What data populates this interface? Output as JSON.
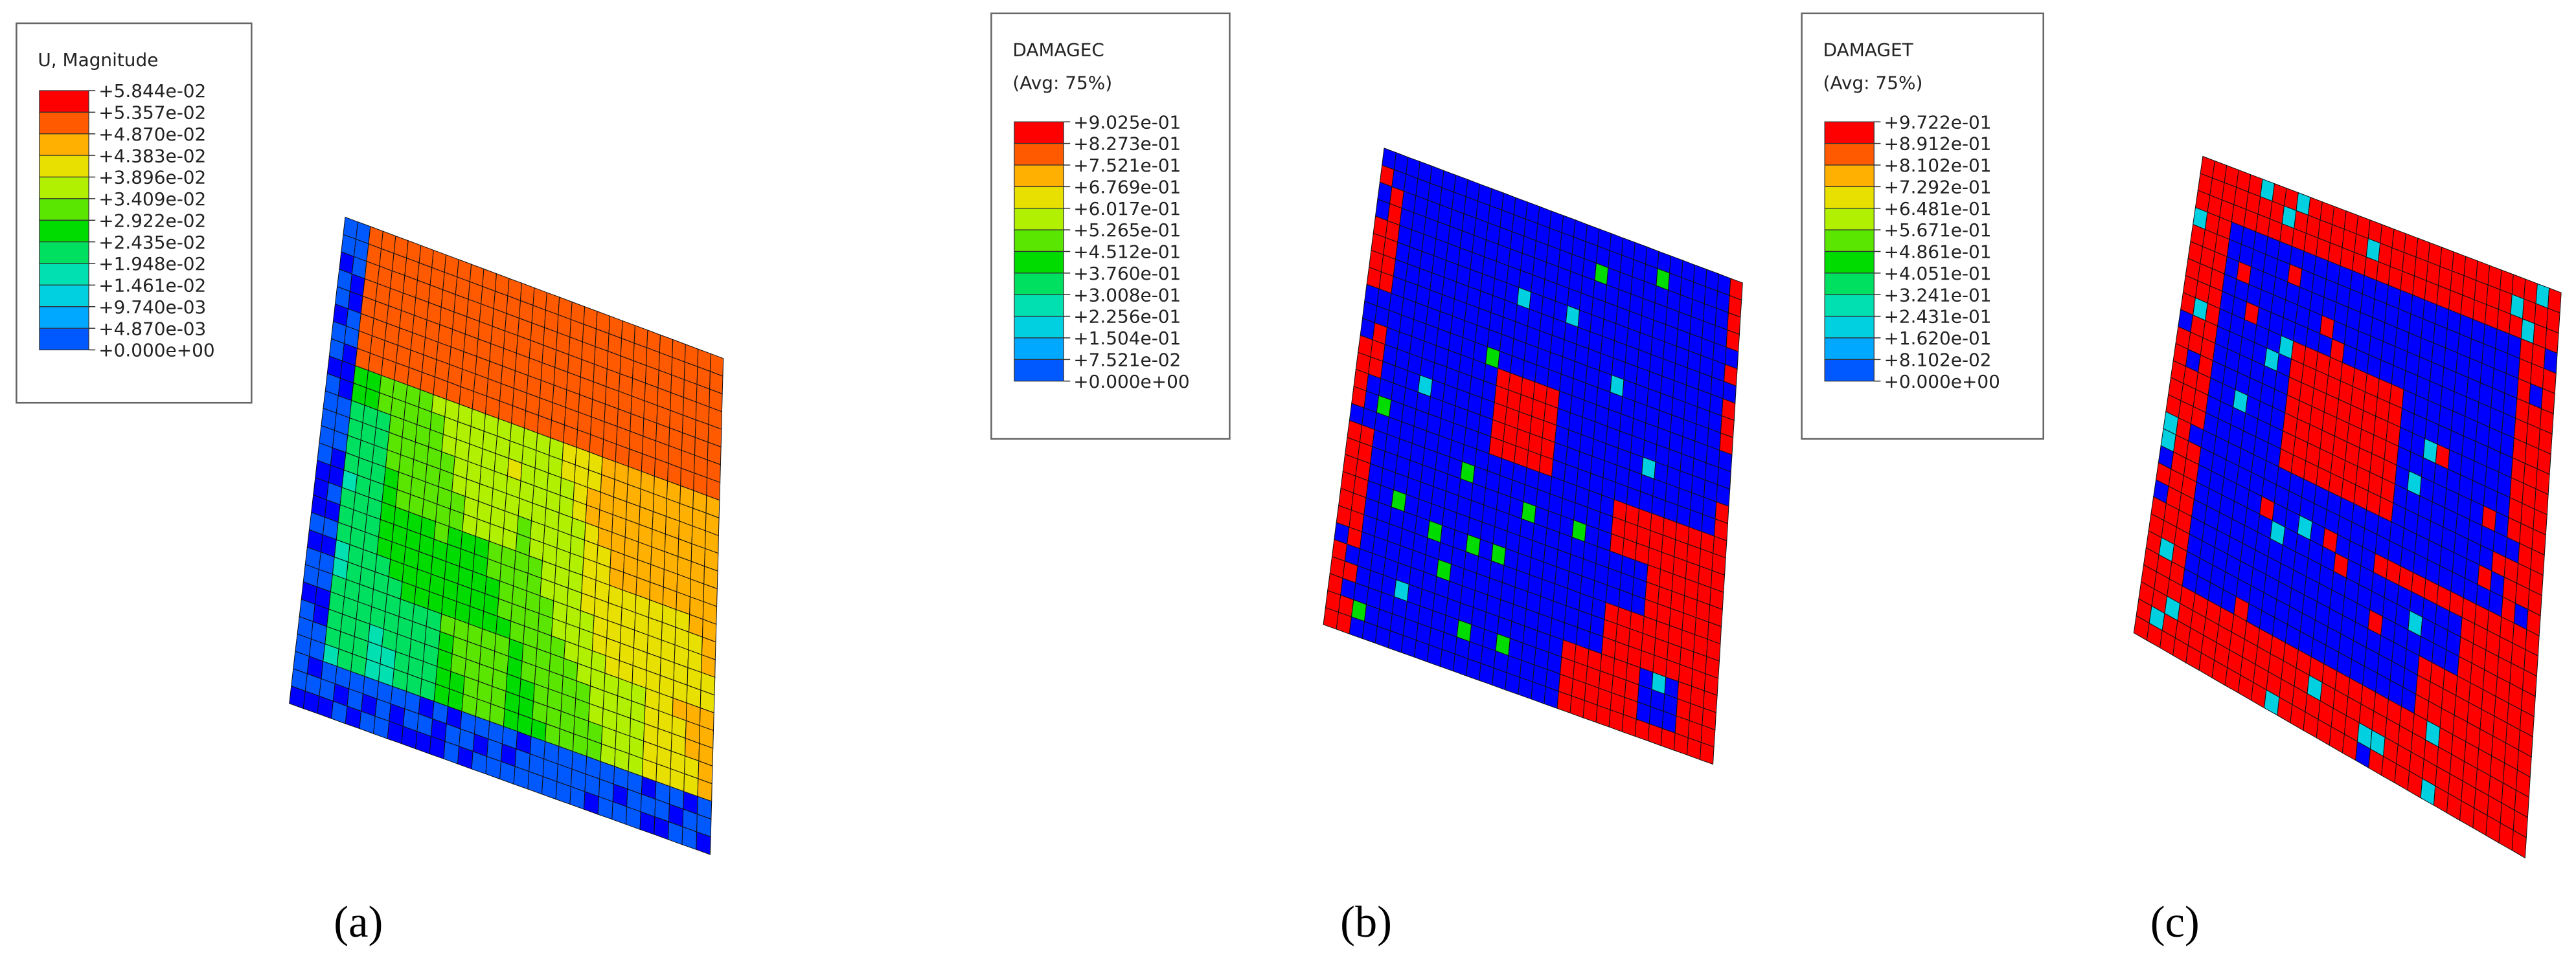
{
  "panels": [
    {
      "legend": {
        "title": "U, Magnitude",
        "labels": [
          "+5.844e-02",
          "+5.357e-02",
          "+4.870e-02",
          "+4.383e-02",
          "+3.896e-02",
          "+3.409e-02",
          "+2.922e-02",
          "+2.435e-02",
          "+1.948e-02",
          "+1.461e-02",
          "+9.740e-03",
          "+4.870e-03",
          "+0.000e+00"
        ]
      },
      "label": "(a)"
    },
    {
      "legend": {
        "title": "DAMAGEC",
        "subtitle": "(Avg: 75%)",
        "labels": [
          "+9.025e-01",
          "+8.273e-01",
          "+7.521e-01",
          "+6.769e-01",
          "+6.017e-01",
          "+5.265e-01",
          "+4.512e-01",
          "+3.760e-01",
          "+3.008e-01",
          "+2.256e-01",
          "+1.504e-01",
          "+7.521e-02",
          "+0.000e+00"
        ]
      },
      "label": "(b)"
    },
    {
      "legend": {
        "title": "DAMAGET",
        "subtitle": "(Avg: 75%)",
        "labels": [
          "+9.722e-01",
          "+8.912e-01",
          "+8.102e-01",
          "+7.292e-01",
          "+6.481e-01",
          "+5.671e-01",
          "+4.861e-01",
          "+4.051e-01",
          "+3.241e-01",
          "+2.431e-01",
          "+1.620e-01",
          "+8.102e-02",
          "+0.000e+00"
        ]
      },
      "label": "(c)"
    }
  ]
}
